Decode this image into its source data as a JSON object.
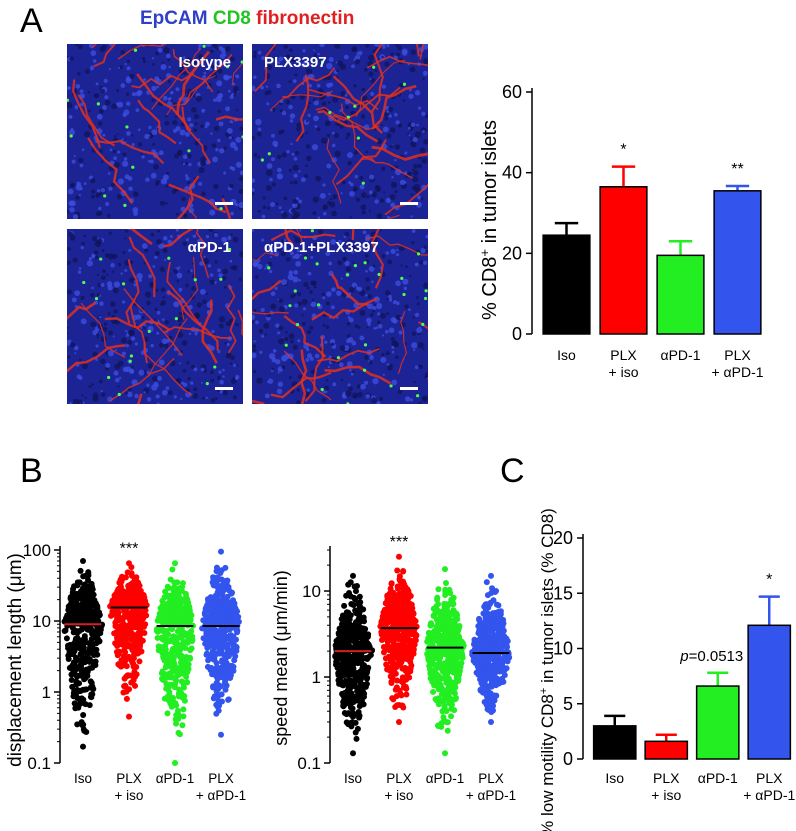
{
  "panels": {
    "A": "A",
    "B": "B",
    "C": "C"
  },
  "micro": {
    "title_epcam": "EpCAM",
    "title_cd8": "CD8",
    "title_fn": "fibronectin",
    "labels": [
      "Isotype",
      "PLX3397",
      "αPD-1",
      "αPD-1+PLX3397"
    ]
  },
  "colors": {
    "iso": "#000000",
    "plx": "#ff0000",
    "pd1": "#22ee22",
    "combo": "#3355ee"
  },
  "chart_data": [
    {
      "id": "A",
      "type": "bar",
      "categories": [
        "Iso",
        "PLX\n+ iso",
        "αPD-1",
        "PLX\n+ αPD-1"
      ],
      "values": [
        24.5,
        36.5,
        19.5,
        35.5
      ],
      "errors": [
        3,
        5,
        3.5,
        1.2
      ],
      "significance": [
        "",
        "*",
        "",
        "**"
      ],
      "ylabel": "% CD8+ in tumor islets",
      "ylim": [
        0,
        60
      ],
      "yticks": [
        0,
        20,
        40,
        60
      ],
      "grid": false
    },
    {
      "id": "B1",
      "type": "scatter",
      "categories": [
        "Iso",
        "PLX\n+ iso",
        "αPD-1",
        "PLX\n+ αPD-1"
      ],
      "medians": [
        9,
        15.5,
        8.5,
        8.5
      ],
      "ranges": [
        [
          0.17,
          70
        ],
        [
          0.45,
          65
        ],
        [
          0.1,
          65
        ],
        [
          0.25,
          95
        ]
      ],
      "significance": [
        "",
        "***",
        "",
        ""
      ],
      "ylabel": "displacement length (μm)",
      "yscale": "log",
      "ylim": [
        0.1,
        100
      ],
      "yticks": [
        "0.1",
        "1",
        "10",
        "100"
      ],
      "grid": false
    },
    {
      "id": "B2",
      "type": "scatter",
      "categories": [
        "Iso",
        "PLX\n+ iso",
        "αPD-1",
        "PLX\n+ αPD-1"
      ],
      "medians": [
        2,
        3.7,
        2.2,
        1.9
      ],
      "ranges": [
        [
          0.13,
          15
        ],
        [
          0.3,
          25
        ],
        [
          0.13,
          18
        ],
        [
          0.3,
          15
        ]
      ],
      "significance": [
        "",
        "***",
        "",
        ""
      ],
      "ylabel": "speed mean (μm/min)",
      "yscale": "log",
      "ylim": [
        0.1,
        30
      ],
      "yticks": [
        "0.1",
        "1",
        "10"
      ],
      "grid": false
    },
    {
      "id": "C",
      "type": "bar",
      "categories": [
        "Iso",
        "PLX\n+ iso",
        "αPD-1",
        "PLX\n+ αPD-1"
      ],
      "values": [
        3,
        1.6,
        6.6,
        12.1
      ],
      "errors": [
        0.9,
        0.6,
        1.2,
        2.6
      ],
      "significance": [
        "",
        "",
        "p=0.0513",
        "*"
      ],
      "ylabel": "% low motility CD8+ in tumor islets (% CD8)",
      "ylim": [
        0,
        20
      ],
      "yticks": [
        0,
        5,
        10,
        15,
        20
      ],
      "grid": false
    }
  ]
}
